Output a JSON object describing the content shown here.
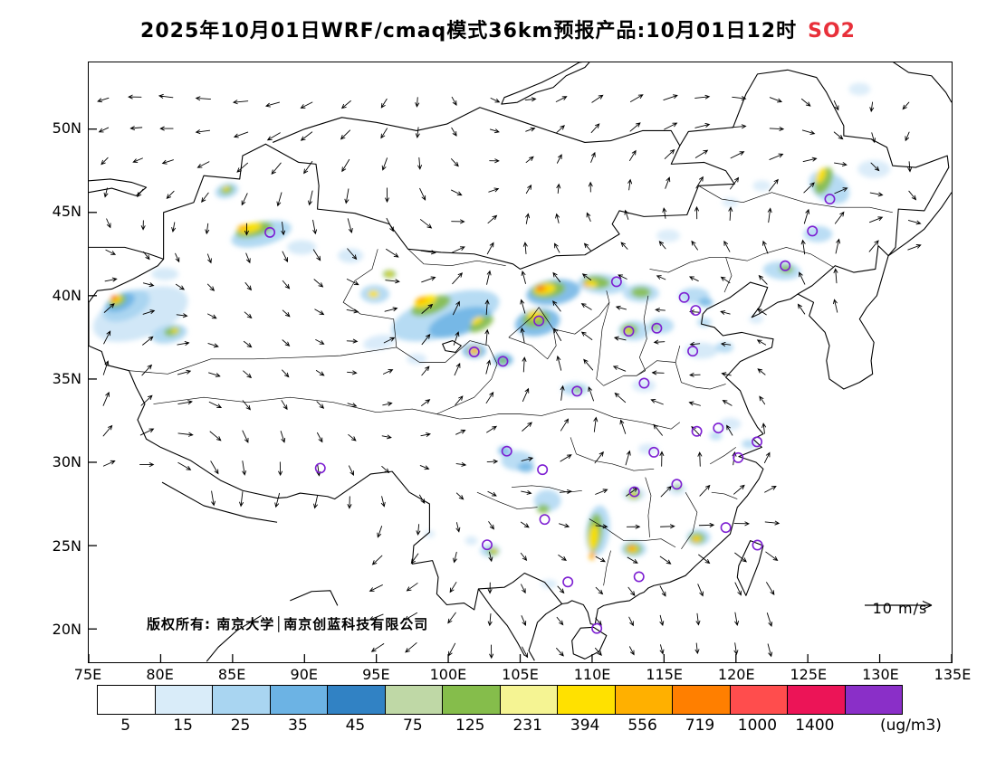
{
  "title": {
    "text": "2025年10月01日WRF/cmaq模式36km预报产品:10月01日12时",
    "pollutant": "SO2",
    "pollutant_color": "#e8303a"
  },
  "map": {
    "copyright": "版权所有: 南京大学│南京创蓝科技有限公司",
    "wind_ref_label": "10 m/s",
    "lat_ticks": [
      {
        "label": "50N",
        "value": 50
      },
      {
        "label": "45N",
        "value": 45
      },
      {
        "label": "40N",
        "value": 40
      },
      {
        "label": "35N",
        "value": 35
      },
      {
        "label": "30N",
        "value": 30
      },
      {
        "label": "25N",
        "value": 25
      },
      {
        "label": "20N",
        "value": 20
      }
    ],
    "lon_ticks": [
      {
        "label": "75E",
        "value": 75
      },
      {
        "label": "80E",
        "value": 80
      },
      {
        "label": "85E",
        "value": 85
      },
      {
        "label": "90E",
        "value": 90
      },
      {
        "label": "95E",
        "value": 95
      },
      {
        "label": "100E",
        "value": 100
      },
      {
        "label": "105E",
        "value": 105
      },
      {
        "label": "110E",
        "value": 110
      },
      {
        "label": "115E",
        "value": 115
      },
      {
        "label": "120E",
        "value": 120
      },
      {
        "label": "125E",
        "value": 125
      },
      {
        "label": "130E",
        "value": 130
      },
      {
        "label": "135E",
        "value": 135
      }
    ]
  },
  "colorbar": {
    "unit": "(ug/m3)",
    "levels": [
      "5",
      "15",
      "25",
      "35",
      "45",
      "75",
      "125",
      "231",
      "394",
      "556",
      "719",
      "1000",
      "1400"
    ],
    "colors": [
      "#ffffff",
      "#d9ecf9",
      "#a9d5f1",
      "#6cb3e4",
      "#3182c4",
      "#bfd8a6",
      "#85bd4b",
      "#f5f493",
      "#ffe100",
      "#ffb000",
      "#ff7f00",
      "#ff4d4d",
      "#ec1457",
      "#8a2fc8"
    ]
  },
  "chart_data": {
    "type": "heatmap",
    "title": "2025年10月01日WRF/cmaq模式36km预报产品:10月01日12时 SO2",
    "field": "SO2 surface concentration forecast",
    "model": "WRF/cmaq 36km",
    "valid_time": "10月01日12时",
    "unit": "ug/m3",
    "extent": {
      "lon_min": 75,
      "lon_max": 135,
      "lat_min": 18,
      "lat_max": 54
    },
    "levels": [
      5,
      15,
      25,
      35,
      45,
      75,
      125,
      231,
      394,
      556,
      719,
      1000,
      1400
    ],
    "palette": [
      "#ffffff",
      "#d9ecf9",
      "#a9d5f1",
      "#6cb3e4",
      "#3182c4",
      "#bfd8a6",
      "#85bd4b",
      "#f5f493",
      "#ffe100",
      "#ffb000",
      "#ff7f00",
      "#ff4d4d",
      "#ec1457",
      "#8a2fc8"
    ],
    "wind": {
      "reference_speed": "10 m/s",
      "style": "vector arrows on ~2.4deg grid"
    },
    "stations_lonlat": [
      [
        87.6,
        43.8
      ],
      [
        91.1,
        29.65
      ],
      [
        101.8,
        36.62
      ],
      [
        103.8,
        36.06
      ],
      [
        106.3,
        38.49
      ],
      [
        111.7,
        40.84
      ],
      [
        116.4,
        39.9
      ],
      [
        117.2,
        39.12
      ],
      [
        114.5,
        38.05
      ],
      [
        112.55,
        37.87
      ],
      [
        117.0,
        36.67
      ],
      [
        113.62,
        34.75
      ],
      [
        108.95,
        34.27
      ],
      [
        104.07,
        30.67
      ],
      [
        106.55,
        29.56
      ],
      [
        106.7,
        26.57
      ],
      [
        102.7,
        25.05
      ],
      [
        108.32,
        22.82
      ],
      [
        110.33,
        20.03
      ],
      [
        113.26,
        23.13
      ],
      [
        112.94,
        28.23
      ],
      [
        114.3,
        30.6
      ],
      [
        115.89,
        28.68
      ],
      [
        117.28,
        31.86
      ],
      [
        118.78,
        32.06
      ],
      [
        121.47,
        31.23
      ],
      [
        120.16,
        30.28
      ],
      [
        119.3,
        26.08
      ],
      [
        121.5,
        25.03
      ],
      [
        123.43,
        41.8
      ],
      [
        125.32,
        43.88
      ],
      [
        126.53,
        45.8
      ]
    ],
    "plumes": [
      [
        78.6,
        38.9,
        55,
        26,
        -20,
        "#cfe6f7",
        0.95
      ],
      [
        77.6,
        39.4,
        28,
        15,
        -24,
        "#a9d5f1",
        0.95
      ],
      [
        77.2,
        39.6,
        17,
        9,
        -24,
        "#6cb3e4",
        0.9
      ],
      [
        77.0,
        39.7,
        10,
        6,
        -24,
        "#85bd4b",
        0.95
      ],
      [
        76.9,
        39.78,
        6.5,
        4,
        -24,
        "#ffe100",
        0.95
      ],
      [
        76.8,
        39.85,
        4,
        2.6,
        -24,
        "#ff7f00",
        0.95
      ],
      [
        76.72,
        39.9,
        2.4,
        1.6,
        -24,
        "#e8251f",
        1
      ],
      [
        80.6,
        37.7,
        20,
        10,
        -12,
        "#a9d5f1",
        0.9
      ],
      [
        80.8,
        37.85,
        9,
        5,
        -12,
        "#85bd4b",
        0.9
      ],
      [
        81.0,
        37.9,
        4,
        2.5,
        -12,
        "#ffe100",
        0.9
      ],
      [
        80.3,
        41.3,
        15,
        7,
        0,
        "#cfe6f7",
        0.85
      ],
      [
        84.6,
        46.3,
        13,
        8,
        -15,
        "#a9d5f1",
        0.9
      ],
      [
        84.6,
        46.35,
        7,
        4.5,
        -15,
        "#85bd4b",
        0.95
      ],
      [
        84.55,
        46.42,
        3.5,
        2.2,
        -15,
        "#ffe100",
        0.95
      ],
      [
        87.0,
        43.7,
        34,
        13,
        -14,
        "#a9d5f1",
        0.9
      ],
      [
        86.5,
        43.95,
        21,
        7.5,
        -13,
        "#85bd4b",
        0.95
      ],
      [
        86.2,
        44.05,
        13,
        5,
        -13,
        "#ffe100",
        0.95
      ],
      [
        85.7,
        44.1,
        6,
        2.8,
        -13,
        "#ffb000",
        0.95
      ],
      [
        89.8,
        42.9,
        16,
        8,
        0,
        "#cfe6f7",
        0.85
      ],
      [
        93.2,
        42.4,
        14,
        8,
        0,
        "#cfe6f7",
        0.85
      ],
      [
        95.9,
        41.3,
        7,
        4.5,
        0,
        "#85bd4b",
        0.9
      ],
      [
        95.9,
        41.3,
        3.2,
        2,
        0,
        "#ffe100",
        0.9
      ],
      [
        94.9,
        40.1,
        16,
        10,
        0,
        "#a9d5f1",
        0.85
      ],
      [
        94.8,
        40.1,
        6,
        4,
        0,
        "#ffe100",
        0.9
      ],
      [
        99.8,
        38.8,
        62,
        23,
        -17,
        "#a9d5f1",
        0.85
      ],
      [
        100.8,
        38.4,
        36,
        14,
        -18,
        "#6cb3e4",
        0.85
      ],
      [
        98.8,
        39.4,
        23,
        9,
        -20,
        "#85bd4b",
        0.9
      ],
      [
        98.4,
        39.65,
        13,
        5.5,
        -20,
        "#ffe100",
        0.95
      ],
      [
        98.1,
        39.75,
        6.5,
        3,
        -20,
        "#ffb000",
        0.95
      ],
      [
        102.3,
        38.3,
        15,
        6.5,
        -30,
        "#85bd4b",
        0.9
      ],
      [
        102.0,
        38.5,
        7,
        3.5,
        -30,
        "#ffe100",
        0.92
      ],
      [
        103.8,
        36.15,
        11,
        7,
        0,
        "#6cb3e4",
        0.9
      ],
      [
        103.8,
        36.1,
        5.5,
        3.5,
        0,
        "#85bd4b",
        0.92
      ],
      [
        101.8,
        36.68,
        13,
        8,
        0,
        "#6cb3e4",
        0.88
      ],
      [
        101.8,
        36.68,
        6.5,
        4.2,
        0,
        "#ffe100",
        0.92
      ],
      [
        101.8,
        36.7,
        3.2,
        2.2,
        0,
        "#ff7f00",
        0.95
      ],
      [
        95.2,
        37.2,
        18,
        8,
        -10,
        "#cfe6f7",
        0.8
      ],
      [
        97.8,
        36.2,
        11,
        6,
        0,
        "#cfe6f7",
        0.8
      ],
      [
        106.2,
        38.4,
        25,
        15,
        -10,
        "#6cb3e4",
        0.85
      ],
      [
        106.1,
        38.6,
        15,
        9,
        -8,
        "#85bd4b",
        0.92
      ],
      [
        106.0,
        38.85,
        8,
        5,
        -8,
        "#ffe100",
        0.93
      ],
      [
        107.3,
        40.2,
        30,
        14,
        -8,
        "#6cb3e4",
        0.85
      ],
      [
        106.95,
        40.35,
        19,
        9,
        -8,
        "#85bd4b",
        0.92
      ],
      [
        106.7,
        40.4,
        12,
        6,
        -8,
        "#ffe100",
        0.95
      ],
      [
        106.5,
        40.42,
        6.5,
        3.8,
        -8,
        "#ffb000",
        0.95
      ],
      [
        106.38,
        40.45,
        3.2,
        2,
        -8,
        "#e8251f",
        1
      ],
      [
        110.7,
        40.7,
        27,
        11,
        4,
        "#a9d5f1",
        0.85
      ],
      [
        110.3,
        40.8,
        15,
        7,
        4,
        "#85bd4b",
        0.92
      ],
      [
        109.9,
        40.7,
        7.5,
        4,
        4,
        "#ffe100",
        0.93
      ],
      [
        109.6,
        40.65,
        3.4,
        2.2,
        4,
        "#ffb000",
        0.95
      ],
      [
        115.3,
        43.6,
        13,
        7,
        0,
        "#cfe6f7",
        0.7
      ],
      [
        119.6,
        45.6,
        9,
        5,
        0,
        "#cfe6f7",
        0.7
      ],
      [
        113.4,
        40.15,
        20,
        10,
        0,
        "#a9d5f1",
        0.8
      ],
      [
        113.4,
        40.2,
        11,
        6,
        0,
        "#85bd4b",
        0.88
      ],
      [
        112.9,
        37.9,
        17,
        11,
        0,
        "#a9d5f1",
        0.8
      ],
      [
        112.6,
        37.95,
        9,
        6.5,
        0,
        "#85bd4b",
        0.9
      ],
      [
        112.5,
        37.9,
        4,
        2.8,
        0,
        "#ffe100",
        0.92
      ],
      [
        114.8,
        38.2,
        14,
        9,
        0,
        "#a9d5f1",
        0.8
      ],
      [
        114.4,
        38.15,
        5,
        3.5,
        0,
        "#85bd4b",
        0.85
      ],
      [
        117.1,
        40.0,
        17,
        9,
        0,
        "#a9d5f1",
        0.8
      ],
      [
        117.9,
        39.6,
        8,
        5,
        0,
        "#6cb3e4",
        0.8
      ],
      [
        117.8,
        38.4,
        8,
        5,
        0,
        "#a9d5f1",
        0.78
      ],
      [
        117.6,
        36.7,
        19,
        9,
        0,
        "#cfe6f7",
        0.85
      ],
      [
        119.2,
        36.9,
        10,
        6,
        0,
        "#a9d5f1",
        0.8
      ],
      [
        121.4,
        38.6,
        8,
        5,
        0,
        "#cfe6f7",
        0.75
      ],
      [
        113.6,
        34.6,
        13,
        7,
        0,
        "#cfe6f7",
        0.8
      ],
      [
        108.8,
        34.4,
        15,
        7,
        0,
        "#a9d5f1",
        0.8
      ],
      [
        109.0,
        34.35,
        4.5,
        3,
        0,
        "#85bd4b",
        0.85
      ],
      [
        123.2,
        41.5,
        21,
        10,
        5,
        "#a9d5f1",
        0.82
      ],
      [
        123.5,
        41.6,
        8,
        4.5,
        5,
        "#85bd4b",
        0.85
      ],
      [
        125.7,
        43.7,
        16,
        9,
        0,
        "#a9d5f1",
        0.8
      ],
      [
        126.5,
        46.5,
        24,
        16,
        30,
        "#a9d5f1",
        0.85
      ],
      [
        126.1,
        46.9,
        8.5,
        16,
        25,
        "#85bd4b",
        0.92
      ],
      [
        125.9,
        47.2,
        4.5,
        9,
        25,
        "#ffe100",
        0.95
      ],
      [
        129.6,
        47.6,
        18,
        10,
        0,
        "#cfe6f7",
        0.75
      ],
      [
        121.8,
        46.6,
        10,
        6,
        0,
        "#cfe6f7",
        0.7
      ],
      [
        128.6,
        52.4,
        12,
        7,
        0,
        "#cfe6f7",
        0.7
      ],
      [
        113.9,
        30.8,
        11,
        6,
        0,
        "#cfe6f7",
        0.78
      ],
      [
        104.8,
        30.1,
        18,
        11,
        0,
        "#a9d5f1",
        0.8
      ],
      [
        105.4,
        29.7,
        9,
        5.5,
        0,
        "#6cb3e4",
        0.8
      ],
      [
        103.9,
        30.7,
        7,
        5,
        0,
        "#6cb3e4",
        0.8
      ],
      [
        106.9,
        27.7,
        15,
        12,
        0,
        "#a9d5f1",
        0.8
      ],
      [
        106.6,
        27.2,
        7,
        5,
        0,
        "#85bd4b",
        0.85
      ],
      [
        110.4,
        25.9,
        13,
        28,
        6,
        "#a9d5f1",
        0.85
      ],
      [
        110.2,
        25.8,
        8,
        21,
        6,
        "#85bd4b",
        0.92
      ],
      [
        110.1,
        25.5,
        5,
        14,
        6,
        "#ffe100",
        0.94
      ],
      [
        110.0,
        24.4,
        3.2,
        5,
        6,
        "#ffb000",
        0.95
      ],
      [
        112.9,
        28.1,
        13,
        8,
        0,
        "#cfe6f7",
        0.8
      ],
      [
        112.9,
        28.05,
        7,
        5,
        0,
        "#85bd4b",
        0.88
      ],
      [
        112.85,
        28.0,
        3.5,
        2.5,
        0,
        "#ffe100",
        0.92
      ],
      [
        112.9,
        24.8,
        14,
        9,
        0,
        "#a9d5f1",
        0.85
      ],
      [
        112.85,
        24.8,
        9.5,
        6.5,
        0,
        "#85bd4b",
        0.9
      ],
      [
        112.8,
        24.8,
        6,
        4.2,
        0,
        "#ffe100",
        0.93
      ],
      [
        112.75,
        24.85,
        3.2,
        2.4,
        0,
        "#ff7f00",
        0.95
      ],
      [
        117.4,
        25.5,
        13,
        9,
        0,
        "#a9d5f1",
        0.85
      ],
      [
        117.3,
        25.45,
        8.5,
        6,
        0,
        "#85bd4b",
        0.9
      ],
      [
        117.25,
        25.4,
        5,
        3.6,
        0,
        "#ffe100",
        0.93
      ],
      [
        117.2,
        25.35,
        2.6,
        2,
        0,
        "#ffb000",
        0.95
      ],
      [
        115.9,
        28.4,
        10,
        7,
        0,
        "#cfe6f7",
        0.8
      ],
      [
        115.95,
        28.5,
        4,
        3,
        0,
        "#85bd4b",
        0.8
      ],
      [
        119.6,
        32.3,
        12,
        7,
        0,
        "#cfe6f7",
        0.8
      ],
      [
        120.9,
        31.1,
        8,
        5,
        0,
        "#a9d5f1",
        0.8
      ],
      [
        118.6,
        31.6,
        7,
        5,
        0,
        "#a9d5f1",
        0.75
      ],
      [
        102.9,
        24.7,
        11,
        7,
        0,
        "#a9d5f1",
        0.8
      ],
      [
        103.1,
        24.65,
        6,
        4.5,
        0,
        "#85bd4b",
        0.88
      ],
      [
        103.2,
        24.7,
        3,
        2.2,
        0,
        "#ffe100",
        0.9
      ],
      [
        101.6,
        25.3,
        7,
        5,
        0,
        "#cfe6f7",
        0.75
      ],
      [
        98.7,
        25.7,
        6,
        4,
        0,
        "#cfe6f7",
        0.7
      ],
      [
        107.0,
        22.7,
        9,
        5,
        0,
        "#cfe6f7",
        0.75
      ]
    ]
  }
}
